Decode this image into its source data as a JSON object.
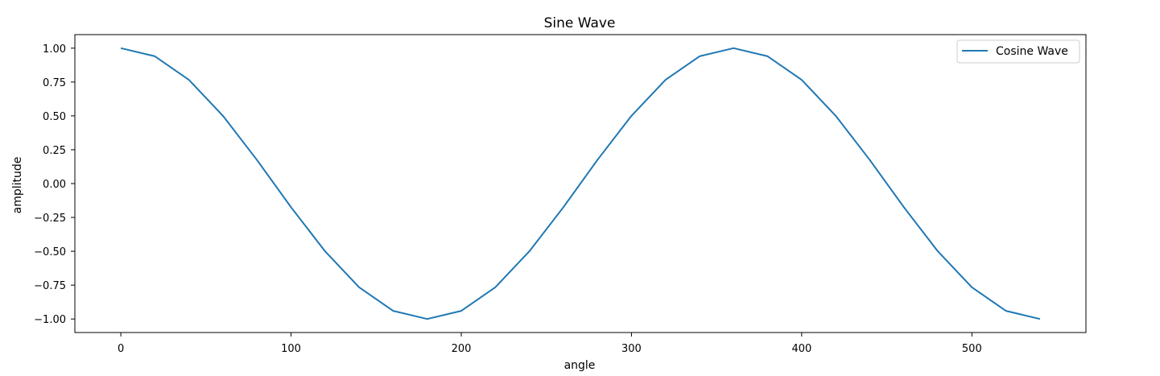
{
  "chart_data": {
    "type": "line",
    "title": "Sine Wave",
    "xlabel": "angle",
    "ylabel": "amplitude",
    "xlim": [
      -27,
      567
    ],
    "ylim": [
      -1.1,
      1.1
    ],
    "xticks": [
      0,
      100,
      200,
      300,
      400,
      500
    ],
    "xtick_labels": [
      "0",
      "100",
      "200",
      "300",
      "400",
      "500"
    ],
    "yticks": [
      1.0,
      0.75,
      0.5,
      0.25,
      0.0,
      -0.25,
      -0.5,
      -0.75,
      -1.0
    ],
    "ytick_labels": [
      "1.00",
      "0.75",
      "0.50",
      "0.25",
      "0.00",
      "−0.25",
      "−0.50",
      "−0.75",
      "−1.00"
    ],
    "grid": false,
    "legend_position": "top-right",
    "series": [
      {
        "name": "Cosine Wave",
        "color": "#1f77b4",
        "x": [
          0,
          20,
          40,
          60,
          80,
          100,
          120,
          140,
          160,
          180,
          200,
          220,
          240,
          260,
          280,
          300,
          320,
          340,
          360,
          380,
          400,
          420,
          440,
          460,
          480,
          500,
          520,
          540
        ],
        "y": [
          1.0,
          0.94,
          0.766,
          0.5,
          0.174,
          -0.174,
          -0.5,
          -0.766,
          -0.94,
          -1.0,
          -0.94,
          -0.766,
          -0.5,
          -0.174,
          0.174,
          0.5,
          0.766,
          0.94,
          1.0,
          0.94,
          0.766,
          0.5,
          0.174,
          -0.174,
          -0.5,
          -0.766,
          -0.94,
          -1.0
        ]
      }
    ]
  }
}
